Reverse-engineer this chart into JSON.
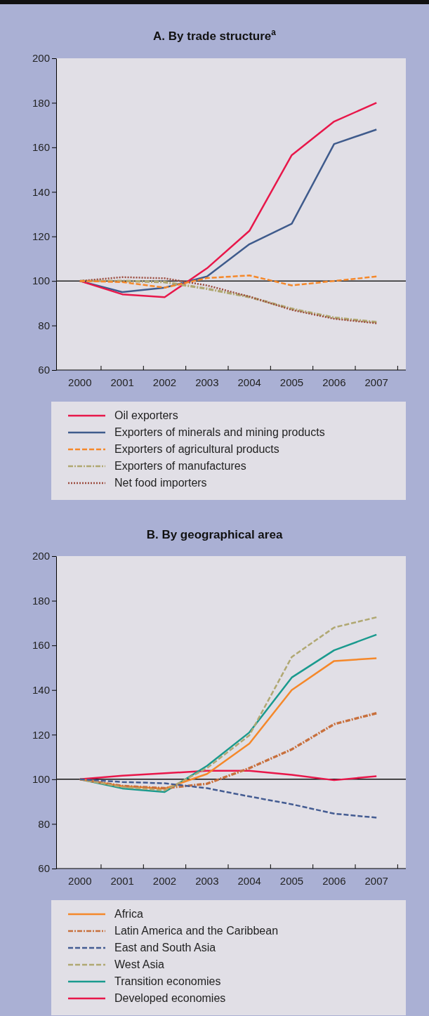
{
  "chart_data": [
    {
      "type": "line",
      "title": "A. By trade structure$^{a}$",
      "categories": [
        "2000",
        "2001",
        "2002",
        "2003",
        "2004",
        "2005",
        "2006",
        "2007"
      ],
      "ylim": [
        60,
        200
      ],
      "yticks": [
        60,
        80,
        100,
        120,
        140,
        160,
        180,
        200
      ],
      "grid": false,
      "legend": "bottom",
      "ref_lines": [
        {
          "axis": "y",
          "value": 100,
          "color": "#222222"
        }
      ],
      "series": [
        {
          "name": "Oil exporters",
          "color": "#e8174a",
          "line_style": "solid",
          "values": [
            100,
            94,
            92.7,
            105.7,
            122.5,
            156.5,
            171.6,
            180
          ]
        },
        {
          "name": "Exporters of minerals and mining products",
          "color": "#3f5b8c",
          "line_style": "solid",
          "values": [
            100,
            95,
            97,
            102,
            116.5,
            125.7,
            161.5,
            168
          ]
        },
        {
          "name": "Exporters of agricultural products",
          "color": "#f5882a",
          "line_style": "dashed",
          "values": [
            100,
            99.5,
            97,
            101.3,
            102.5,
            98,
            100,
            102
          ]
        },
        {
          "name": "Exporters of manufactures",
          "color": "#b0a872",
          "line_style": "dashdot",
          "values": [
            100,
            100,
            99.5,
            96.5,
            92.8,
            87.5,
            83.5,
            81.5
          ]
        },
        {
          "name": "Net food importers",
          "color": "#9b4a3c",
          "line_style": "dotted",
          "values": [
            100,
            101.7,
            101.2,
            98,
            93,
            87,
            83,
            81
          ]
        }
      ]
    },
    {
      "type": "line",
      "title": "B. By geographical area",
      "categories": [
        "2000",
        "2001",
        "2002",
        "2003",
        "2004",
        "2005",
        "2006",
        "2007"
      ],
      "ylim": [
        60,
        200
      ],
      "yticks": [
        60,
        80,
        100,
        120,
        140,
        160,
        180,
        200
      ],
      "grid": false,
      "legend": "bottom",
      "ref_lines": [
        {
          "axis": "y",
          "value": 100,
          "color": "#111111"
        }
      ],
      "series": [
        {
          "name": "Africa",
          "color": "#f5882a",
          "line_style": "solid",
          "values": [
            100,
            96.9,
            95.8,
            102.4,
            116,
            140,
            153,
            154.2
          ]
        },
        {
          "name": "Latin America and the Caribbean",
          "color": "#c8703d",
          "line_style": "dashdot",
          "values": [
            100,
            97,
            96,
            98,
            105,
            113.4,
            124.7,
            129.6
          ]
        },
        {
          "name": "East and South Asia",
          "color": "#445c92",
          "line_style": "dashed",
          "values": [
            100,
            98.8,
            98.2,
            96,
            92.3,
            88.8,
            84.6,
            82.8
          ]
        },
        {
          "name": "West Asia",
          "color": "#b0a872",
          "line_style": "dashed",
          "values": [
            100,
            96.5,
            95,
            105,
            119.7,
            154.8,
            168,
            172.6
          ]
        },
        {
          "name": "Transition economies",
          "color": "#1a9a8e",
          "line_style": "solid",
          "values": [
            100,
            95.9,
            94.3,
            106,
            121,
            145.6,
            157.8,
            164.8
          ]
        },
        {
          "name": "Developed economies",
          "color": "#e8174a",
          "line_style": "solid",
          "values": [
            100,
            101.6,
            102.7,
            103.8,
            103.8,
            102,
            99.6,
            101.4
          ]
        }
      ]
    }
  ]
}
